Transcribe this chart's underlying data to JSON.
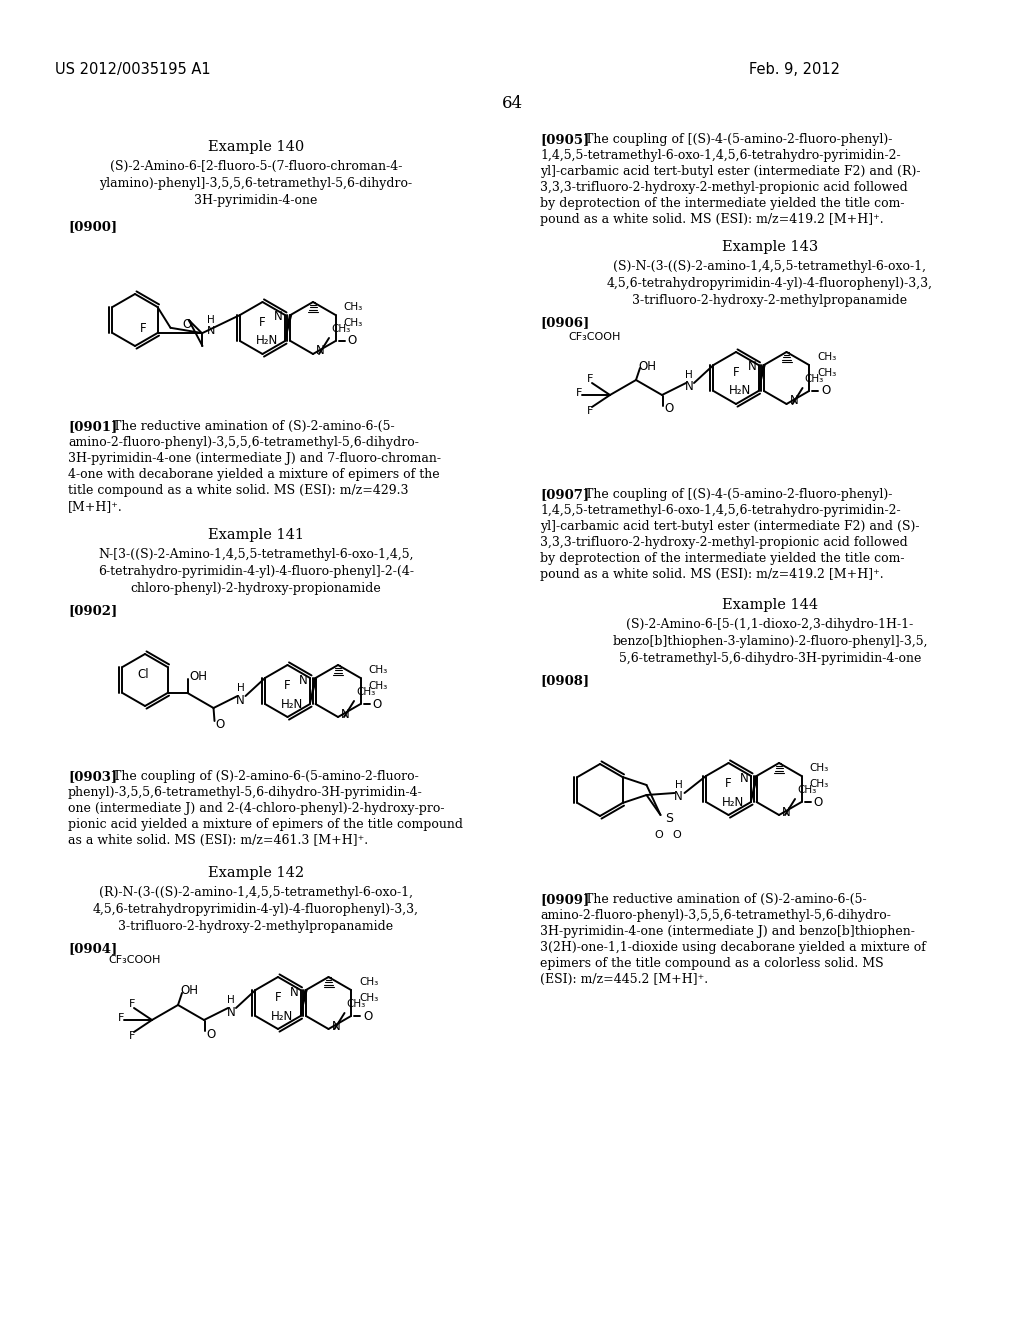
{
  "page_header_left": "US 2012/0035195 A1",
  "page_header_right": "Feb. 9, 2012",
  "page_number": "64",
  "bg": "#ffffff",
  "fg": "#000000"
}
